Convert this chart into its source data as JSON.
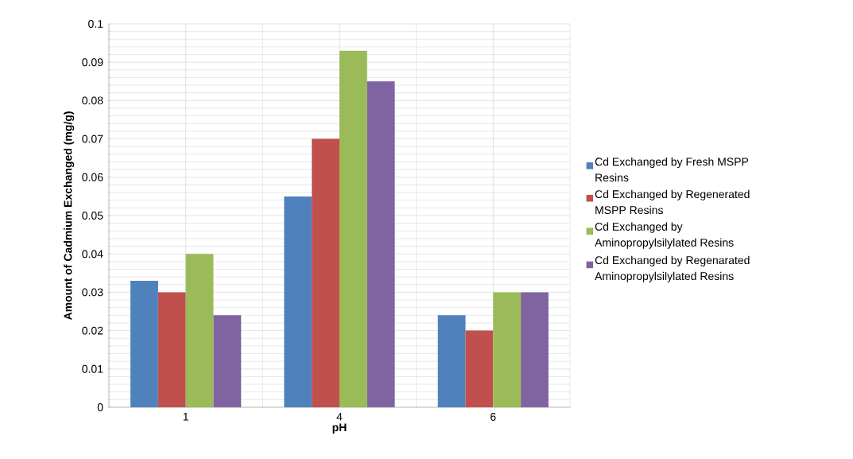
{
  "chart_data": {
    "type": "bar",
    "xlabel": "pH",
    "ylabel": "Amount of Cadmium Exchanged (mg/g)",
    "categories": [
      "1",
      "4",
      "6"
    ],
    "series": [
      {
        "name": "Cd Exchanged by Fresh MSPP Resins",
        "color": "#4f81bd",
        "values": [
          0.033,
          0.055,
          0.024
        ]
      },
      {
        "name": "Cd Exchanged by Regenerated MSPP Resins",
        "color": "#c0504d",
        "values": [
          0.03,
          0.07,
          0.02
        ]
      },
      {
        "name": "Cd Exchanged by Aminopropylsilylated Resins",
        "color": "#9bbb59",
        "values": [
          0.04,
          0.093,
          0.03
        ]
      },
      {
        "name": "Cd Exchanged by Regenarated Aminopropylsilylated Resins",
        "color": "#8064a2",
        "values": [
          0.024,
          0.085,
          0.03
        ]
      }
    ],
    "ylim": [
      0,
      0.1
    ],
    "yticks": [
      0,
      0.01,
      0.02,
      0.03,
      0.04,
      0.05,
      0.06,
      0.07,
      0.08,
      0.09,
      0.1
    ],
    "grid": true,
    "legend": "right"
  }
}
